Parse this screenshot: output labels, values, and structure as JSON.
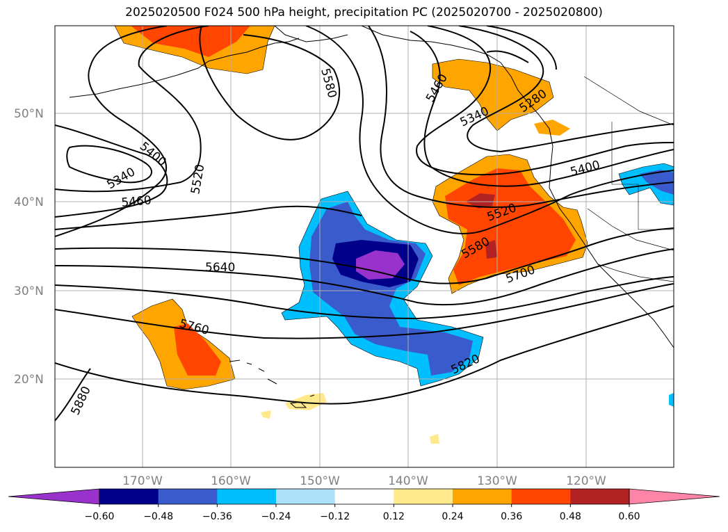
{
  "title": "2025020500 F024 500 hPa height, precipitation PC (2025020700 - 2025020800)",
  "map": {
    "lat_labels": [
      "50°N",
      "40°N",
      "30°N",
      "20°N"
    ],
    "lon_labels": [
      "170°W",
      "160°W",
      "150°W",
      "140°W",
      "130°W",
      "120°W"
    ],
    "contour_labels": [
      "5580",
      "5460",
      "5340",
      "5280",
      "5400",
      "5340",
      "5520",
      "5460",
      "5400",
      "5520",
      "5640",
      "5580",
      "5700",
      "5760",
      "5820",
      "5880"
    ]
  },
  "colorbar": {
    "ticks": [
      "−0.60",
      "−0.48",
      "−0.36",
      "−0.24",
      "−0.12",
      "0.12",
      "0.24",
      "0.36",
      "0.48",
      "0.60"
    ],
    "colors": [
      "#9932cc",
      "#00008b",
      "#3a5bcc",
      "#00bfff",
      "#ade1fa",
      "#ffffff",
      "#ffe98a",
      "#ffa500",
      "#ff4500",
      "#b22222",
      "#ff85a8"
    ]
  }
}
